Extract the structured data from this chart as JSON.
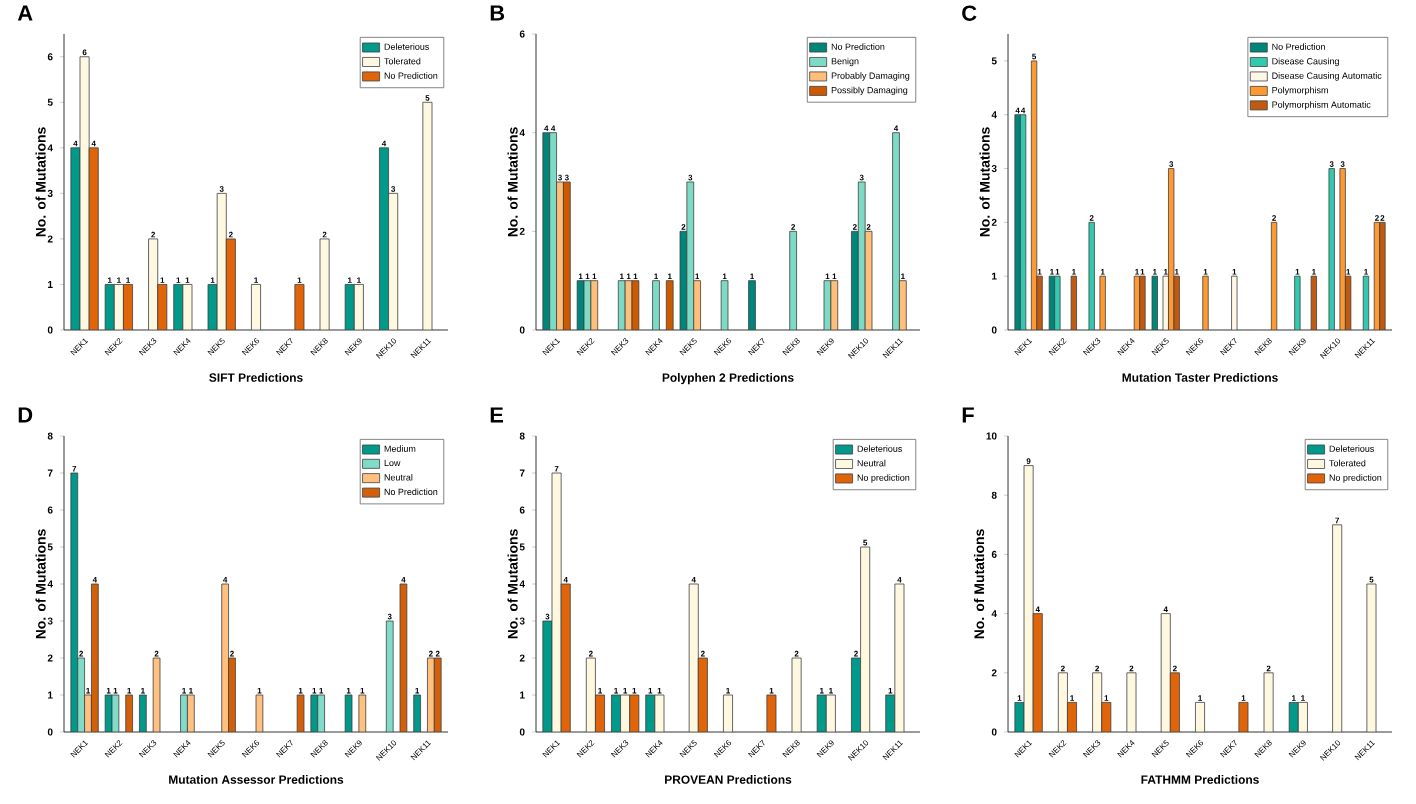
{
  "chart_data": [
    {
      "type": "bar",
      "title": "A",
      "xlabel": "SIFT Predictions",
      "ylabel": "No. of Mutations",
      "categories": [
        "NEK1",
        "NEK2",
        "NEK3",
        "NEK4",
        "NEK5",
        "NEK6",
        "NEK7",
        "NEK8",
        "NEK9",
        "NEK10",
        "NEK11"
      ],
      "ylim": [
        0,
        6.5
      ],
      "yticks": [
        0,
        1,
        2,
        3,
        4,
        5,
        6
      ],
      "legend": "top right",
      "data_labels": true,
      "series": [
        {
          "name": "Deleterious",
          "color": "#00998a",
          "values": [
            4,
            1,
            null,
            1,
            1,
            null,
            null,
            null,
            1,
            4,
            null
          ]
        },
        {
          "name": "Tolerated",
          "color": "#fff8e1",
          "values": [
            6,
            1,
            2,
            1,
            3,
            1,
            null,
            2,
            1,
            3,
            5
          ]
        },
        {
          "name": "No Prediction",
          "color": "#e0640a",
          "values": [
            4,
            1,
            1,
            null,
            2,
            null,
            1,
            null,
            null,
            null,
            null
          ]
        }
      ]
    },
    {
      "type": "bar",
      "title": "B",
      "xlabel": "Polyphen 2 Predictions",
      "ylabel": "No. of Mutations",
      "categories": [
        "NEK1",
        "NEK2",
        "NEK3",
        "NEK4",
        "NEK5",
        "NEK6",
        "NEK7",
        "NEK8",
        "NEK9",
        "NEK10",
        "NEK11"
      ],
      "ylim": [
        0,
        6
      ],
      "yticks": [
        0,
        2,
        4,
        6
      ],
      "legend": "top right",
      "data_labels": true,
      "series": [
        {
          "name": "No Prediction",
          "color": "#00857a",
          "values": [
            4,
            1,
            null,
            null,
            2,
            null,
            1,
            null,
            null,
            2,
            null
          ]
        },
        {
          "name": "Benign",
          "color": "#7ddbc5",
          "values": [
            4,
            1,
            1,
            1,
            3,
            1,
            null,
            2,
            1,
            3,
            4
          ]
        },
        {
          "name": "Probably Damaging",
          "color": "#ffbe7a",
          "values": [
            3,
            1,
            1,
            null,
            1,
            null,
            null,
            null,
            1,
            2,
            1
          ]
        },
        {
          "name": "Possibly Damaging",
          "color": "#cc5a00",
          "values": [
            3,
            null,
            1,
            1,
            null,
            null,
            null,
            null,
            null,
            null,
            null
          ]
        }
      ]
    },
    {
      "type": "bar",
      "title": "C",
      "xlabel": "Mutation Taster Predictions",
      "ylabel": "No. of Mutations",
      "categories": [
        "NEK1",
        "NEK2",
        "NEK3",
        "NEK4",
        "NEK5",
        "NEK6",
        "NEK7",
        "NEK8",
        "NEK9",
        "NEK10",
        "NEK11"
      ],
      "ylim": [
        0,
        5.5
      ],
      "yticks": [
        0,
        1,
        2,
        3,
        4,
        5
      ],
      "legend": "top right",
      "data_labels": true,
      "series": [
        {
          "name": "No Prediction",
          "color": "#00857a",
          "values": [
            4,
            1,
            null,
            null,
            1,
            null,
            null,
            null,
            null,
            null,
            null
          ]
        },
        {
          "name": "Disease Causing",
          "color": "#33c9b0",
          "values": [
            4,
            1,
            2,
            null,
            null,
            null,
            null,
            null,
            1,
            3,
            1
          ]
        },
        {
          "name": "Disease Causing Automatic",
          "color": "#fff8e6",
          "values": [
            null,
            null,
            null,
            null,
            1,
            null,
            1,
            null,
            null,
            null,
            null
          ]
        },
        {
          "name": "Polymorphism",
          "color": "#ff9a33",
          "values": [
            5,
            null,
            1,
            1,
            3,
            1,
            null,
            2,
            null,
            3,
            2
          ]
        },
        {
          "name": "Polymorphism Automatic",
          "color": "#c05a10",
          "values": [
            1,
            1,
            null,
            1,
            1,
            null,
            null,
            null,
            1,
            1,
            2
          ]
        }
      ]
    },
    {
      "type": "bar",
      "title": "D",
      "xlabel": "Mutation Assessor Predictions",
      "ylabel": "No. of Mutations",
      "categories": [
        "NEK1",
        "NEK2",
        "NEK3",
        "NEK4",
        "NEK5",
        "NEK6",
        "NEK7",
        "NEK8",
        "NEK9",
        "NEK10",
        "NEK11"
      ],
      "ylim": [
        0,
        8
      ],
      "yticks": [
        0,
        1,
        2,
        3,
        4,
        5,
        6,
        7,
        8
      ],
      "legend": "top right",
      "data_labels": true,
      "series": [
        {
          "name": "Medium",
          "color": "#00998a",
          "values": [
            7,
            1,
            1,
            null,
            null,
            null,
            null,
            1,
            1,
            null,
            1
          ]
        },
        {
          "name": "Low",
          "color": "#80dcc8",
          "values": [
            2,
            1,
            null,
            1,
            null,
            null,
            null,
            1,
            null,
            3,
            null
          ]
        },
        {
          "name": "Neutral",
          "color": "#ffc080",
          "values": [
            1,
            null,
            2,
            1,
            4,
            1,
            null,
            null,
            1,
            null,
            2
          ]
        },
        {
          "name": "No Prediction",
          "color": "#d2600a",
          "values": [
            4,
            1,
            null,
            null,
            2,
            null,
            1,
            null,
            null,
            4,
            2
          ]
        }
      ]
    },
    {
      "type": "bar",
      "title": "E",
      "xlabel": "PROVEAN Predictions",
      "ylabel": "No. of Mutations",
      "categories": [
        "NEK1",
        "NEK2",
        "NEK3",
        "NEK4",
        "NEK5",
        "NEK6",
        "NEK7",
        "NEK8",
        "NEK9",
        "NEK10",
        "NEK11"
      ],
      "ylim": [
        0,
        8
      ],
      "yticks": [
        0,
        1,
        2,
        3,
        4,
        5,
        6,
        7,
        8
      ],
      "legend": "top right",
      "data_labels": true,
      "series": [
        {
          "name": "Deleterious",
          "color": "#00998a",
          "values": [
            3,
            null,
            1,
            1,
            null,
            null,
            null,
            null,
            1,
            2,
            1
          ]
        },
        {
          "name": "Neutral",
          "color": "#fff8e1",
          "values": [
            7,
            2,
            1,
            1,
            4,
            1,
            null,
            2,
            1,
            5,
            4
          ]
        },
        {
          "name": "No prediction",
          "color": "#e0640a",
          "values": [
            4,
            1,
            1,
            null,
            2,
            null,
            1,
            null,
            null,
            null,
            null
          ]
        }
      ]
    },
    {
      "type": "bar",
      "title": "F",
      "xlabel": "FATHMM Predictions",
      "ylabel": "No. of Mutations",
      "categories": [
        "NEK1",
        "NEK2",
        "NEK3",
        "NEK4",
        "NEK5",
        "NEK6",
        "NEK7",
        "NEK8",
        "NEK9",
        "NEK10",
        "NEK11"
      ],
      "ylim": [
        0,
        10
      ],
      "yticks": [
        0,
        2,
        4,
        6,
        8,
        10
      ],
      "legend": "top right",
      "data_labels": true,
      "series": [
        {
          "name": "Deleterious",
          "color": "#00998a",
          "values": [
            1,
            null,
            null,
            null,
            null,
            null,
            null,
            null,
            1,
            null,
            null
          ]
        },
        {
          "name": "Tolerated",
          "color": "#fff8e1",
          "values": [
            9,
            2,
            2,
            2,
            4,
            1,
            null,
            2,
            1,
            7,
            5
          ]
        },
        {
          "name": "No prediction",
          "color": "#e0640a",
          "values": [
            4,
            1,
            1,
            null,
            2,
            null,
            1,
            null,
            null,
            null,
            null
          ]
        }
      ]
    }
  ]
}
